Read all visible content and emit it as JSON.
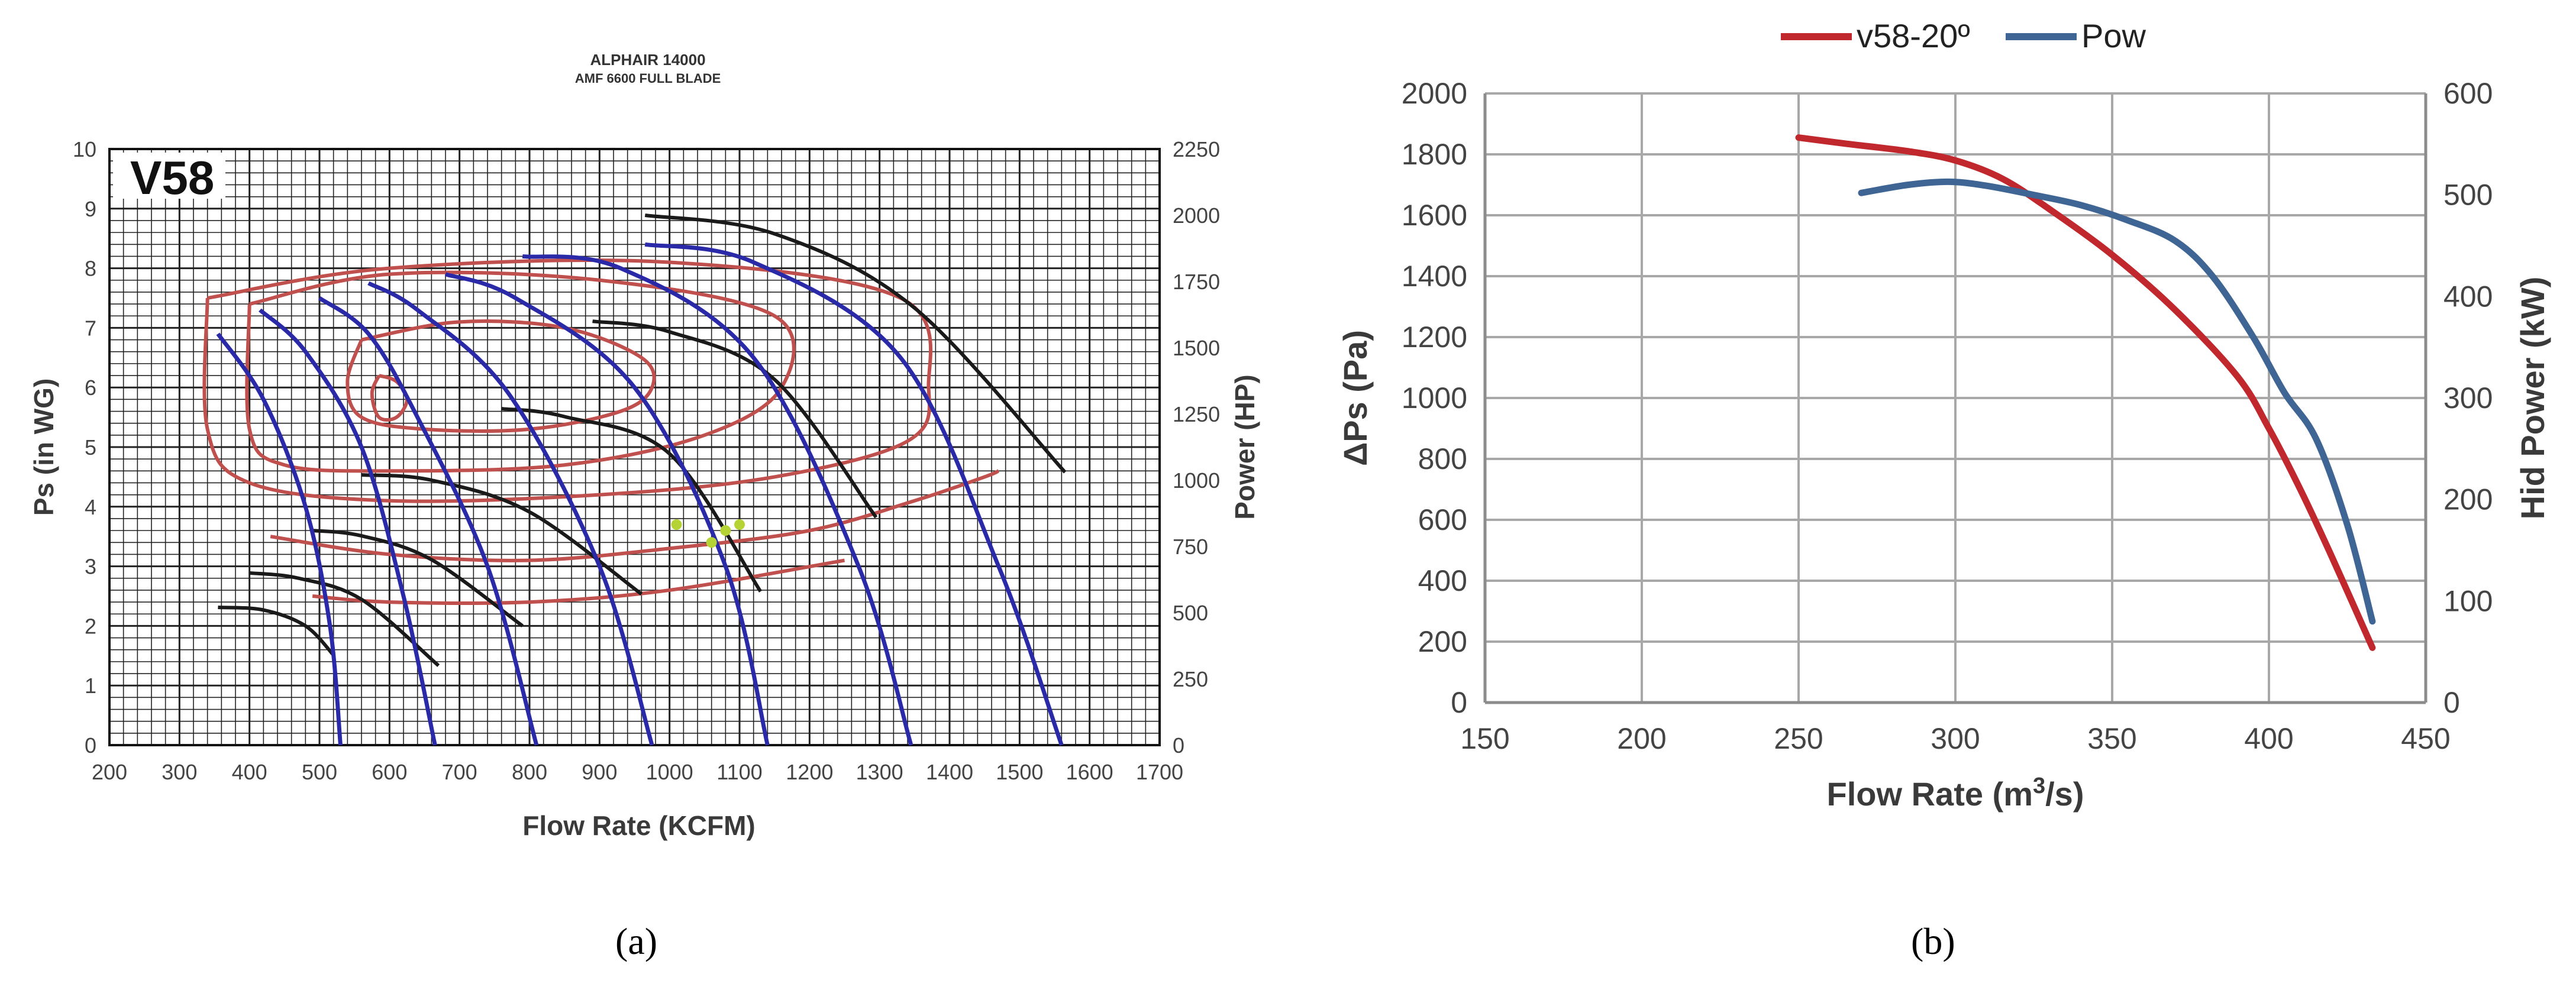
{
  "captions": {
    "a": "(a)",
    "b": "(b)"
  },
  "chart_data": [
    {
      "type": "line",
      "title": "ALPHAIR 14000",
      "subtitle": "AMF 6600 FULL BLADE",
      "corner_label": "V58",
      "xlabel": "Flow Rate (KCFM)",
      "ylabel": "Ps (in WG)",
      "y2label": "Power (HP)",
      "xlim": [
        200,
        1700
      ],
      "ylim": [
        0,
        10
      ],
      "y2lim": [
        0,
        2250
      ],
      "xticks": [
        "200",
        "300",
        "400",
        "500",
        "600",
        "700",
        "800",
        "900",
        "1000",
        "1100",
        "1200",
        "1300",
        "1400",
        "1500",
        "1600",
        "1700"
      ],
      "yticks": [
        "0",
        "1",
        "2",
        "3",
        "4",
        "5",
        "6",
        "7",
        "8",
        "9",
        "10"
      ],
      "y2ticks": [
        "0",
        "250",
        "500",
        "750",
        "1000",
        "1250",
        "1500",
        "1750",
        "2000",
        "2250"
      ],
      "grid": true,
      "colors": {
        "pressure": "#2a2aa8",
        "power": "#1a1a1a",
        "efficiency": "#c0504d",
        "grid": "#222222",
        "point": "#b5d334"
      },
      "pressure_curves": [
        {
          "x": [
            355,
            420,
            480,
            515,
            530
          ],
          "y": [
            6.9,
            5.8,
            4,
            2,
            0
          ]
        },
        {
          "x": [
            415,
            480,
            560,
            620,
            665
          ],
          "y": [
            7.3,
            6.6,
            5,
            2.5,
            0
          ]
        },
        {
          "x": [
            500,
            570,
            640,
            740,
            810
          ],
          "y": [
            7.5,
            6.9,
            5.5,
            3,
            0
          ]
        },
        {
          "x": [
            570,
            640,
            770,
            900,
            975
          ],
          "y": [
            7.75,
            7.3,
            5.9,
            3,
            0
          ]
        },
        {
          "x": [
            680,
            780,
            950,
            1080,
            1140
          ],
          "y": [
            7.9,
            7.5,
            6,
            3,
            0
          ]
        },
        {
          "x": [
            790,
            930,
            1120,
            1270,
            1345
          ],
          "y": [
            8.2,
            8,
            6.5,
            3,
            0
          ]
        },
        {
          "x": [
            965,
            1120,
            1330,
            1470,
            1560
          ],
          "y": [
            8.4,
            8.1,
            6.5,
            3,
            0
          ]
        }
      ],
      "power_curves": [
        {
          "x": [
            355,
            420,
            480,
            520
          ],
          "y": [
            520,
            510,
            450,
            340
          ]
        },
        {
          "x": [
            400,
            470,
            560,
            670
          ],
          "y": [
            650,
            630,
            550,
            300
          ]
        },
        {
          "x": [
            490,
            560,
            660,
            790
          ],
          "y": [
            810,
            790,
            700,
            450
          ]
        },
        {
          "x": [
            560,
            660,
            800,
            960
          ],
          "y": [
            1020,
            1000,
            880,
            570
          ]
        },
        {
          "x": [
            760,
            850,
            1000,
            1130
          ],
          "y": [
            1270,
            1240,
            1100,
            580
          ]
        },
        {
          "x": [
            890,
            1000,
            1150,
            1295
          ],
          "y": [
            1600,
            1560,
            1380,
            860
          ]
        },
        {
          "x": [
            965,
            1150,
            1350,
            1565
          ],
          "y": [
            2000,
            1930,
            1650,
            1030
          ]
        }
      ],
      "efficiency_contours": [
        {
          "x": [
            585,
            610,
            625,
            610,
            585,
            575,
            585
          ],
          "y": [
            6.2,
            6.1,
            5.8,
            5.5,
            5.5,
            5.9,
            6.2
          ]
        },
        {
          "x": [
            560,
            700,
            850,
            960,
            975,
            930,
            800,
            650,
            560,
            540,
            560
          ],
          "y": [
            6.8,
            7.1,
            7,
            6.5,
            6,
            5.6,
            5.3,
            5.3,
            5.5,
            6.1,
            6.8
          ]
        },
        {
          "x": [
            400,
            600,
            900,
            1150,
            1160,
            1050,
            850,
            600,
            450,
            400,
            400
          ],
          "y": [
            7.4,
            7.9,
            7.8,
            7.2,
            6,
            5.2,
            4.7,
            4.6,
            4.7,
            5.3,
            7.4
          ]
        },
        {
          "x": [
            340,
            600,
            1000,
            1330,
            1370,
            1340,
            1150,
            900,
            600,
            400,
            340,
            340
          ],
          "y": [
            7.5,
            8,
            8.1,
            7.5,
            6,
            5.1,
            4.5,
            4.2,
            4.1,
            4.4,
            5.3,
            7.5
          ]
        },
        {
          "x": [
            430,
            600,
            800,
            1000,
            1200,
            1350,
            1450,
            1470
          ],
          "y": [
            3.5,
            3.2,
            3.1,
            3.3,
            3.6,
            4.1,
            4.5,
            4.6
          ]
        },
        {
          "x": [
            490,
            600,
            800,
            1000,
            1250
          ],
          "y": [
            2.5,
            2.4,
            2.4,
            2.6,
            3.1
          ]
        }
      ],
      "operating_points": [
        {
          "x": 1010,
          "y": 3.7
        },
        {
          "x": 1060,
          "y": 3.4
        },
        {
          "x": 1080,
          "y": 3.6
        },
        {
          "x": 1100,
          "y": 3.7
        }
      ]
    },
    {
      "type": "line",
      "xlabel": "Flow Rate (m",
      "xlabel_sup": "3",
      "xlabel_tail": "/s)",
      "ylabel": "ΔPs (Pa)",
      "y2label": "Hid Power (kW)",
      "xlim": [
        150,
        450
      ],
      "ylim": [
        0,
        2000
      ],
      "y2lim": [
        0,
        600
      ],
      "xticks": [
        "150",
        "200",
        "250",
        "300",
        "350",
        "400",
        "450"
      ],
      "yticks": [
        "0",
        "200",
        "400",
        "600",
        "800",
        "1000",
        "1200",
        "1400",
        "1600",
        "1800",
        "2000"
      ],
      "y2ticks": [
        "0",
        "100",
        "200",
        "300",
        "400",
        "500",
        "600"
      ],
      "grid": true,
      "legend": "top-center",
      "series": [
        {
          "name": "v58-20º",
          "axis": "left",
          "color": "#c0282e",
          "x": [
            250,
            265,
            285,
            300,
            315,
            330,
            350,
            370,
            390,
            400,
            410,
            420,
            433
          ],
          "y": [
            1855,
            1835,
            1810,
            1780,
            1720,
            1620,
            1470,
            1290,
            1070,
            900,
            700,
            480,
            180
          ]
        },
        {
          "name": "Pow",
          "axis": "right",
          "color": "#3e6593",
          "x": [
            270,
            285,
            298,
            310,
            325,
            340,
            355,
            370,
            382,
            395,
            405,
            415,
            425,
            433
          ],
          "y": [
            502,
            510,
            513,
            509,
            500,
            490,
            475,
            455,
            420,
            360,
            305,
            260,
            175,
            80
          ]
        }
      ]
    }
  ]
}
